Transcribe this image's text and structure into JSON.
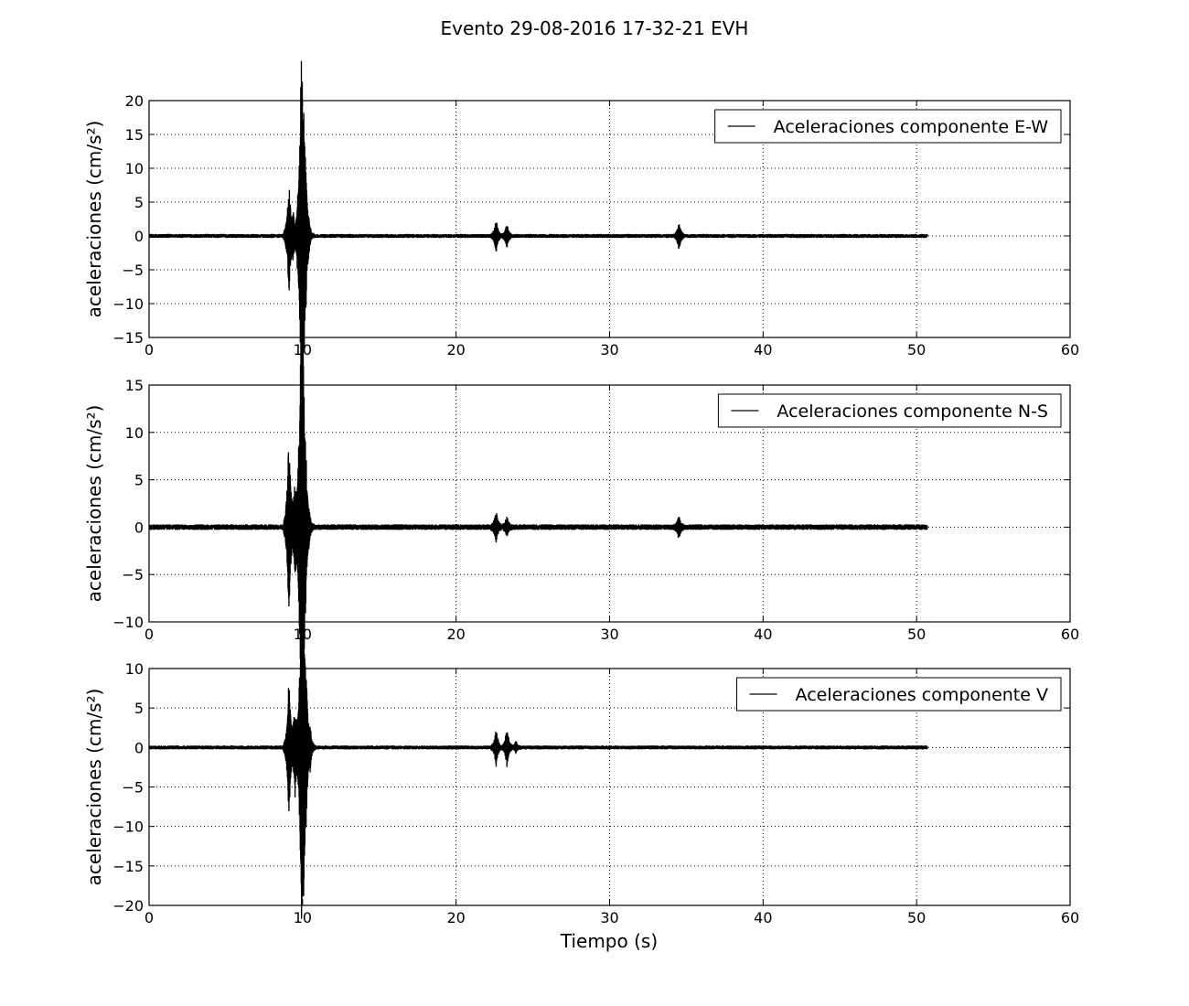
{
  "figure": {
    "title": "Evento 29-08-2016 17-32-21 EVH",
    "xlabel": "Tiempo (s)"
  },
  "chart_data": [
    {
      "type": "line",
      "xlabel": "",
      "ylabel": "aceleraciones (cm/s²)",
      "xlim": [
        0,
        60
      ],
      "ylim": [
        -15,
        20
      ],
      "xticks": [
        0,
        10,
        20,
        30,
        40,
        50,
        60
      ],
      "yticks": [
        -15,
        -10,
        -5,
        0,
        5,
        10,
        15,
        20
      ],
      "grid": true,
      "legend_position": "top-right",
      "series": [
        {
          "name": "Aceleraciones componente E-W",
          "color": "#000000",
          "duration": 50.7,
          "noise": 0.3,
          "peaks": [
            {
              "x": 9.1,
              "y": 5.3
            },
            {
              "x": 9.12,
              "y": -5.6
            },
            {
              "x": 9.4,
              "y": 3.5
            },
            {
              "x": 9.7,
              "y": 3.1
            },
            {
              "x": 9.9,
              "y": 15.5
            },
            {
              "x": 9.95,
              "y": -14.5
            },
            {
              "x": 10.0,
              "y": 6.0
            },
            {
              "x": 10.1,
              "y": -9.8
            },
            {
              "x": 10.2,
              "y": 6.0
            },
            {
              "x": 10.4,
              "y": 2.5
            },
            {
              "x": 22.6,
              "y": 1.5
            },
            {
              "x": 22.62,
              "y": -1.6
            },
            {
              "x": 23.3,
              "y": 1.2
            },
            {
              "x": 23.32,
              "y": -1.0
            },
            {
              "x": 34.5,
              "y": 1.2
            },
            {
              "x": 34.55,
              "y": -1.2
            }
          ]
        }
      ]
    },
    {
      "type": "line",
      "xlabel": "",
      "ylabel": "aceleraciones (cm/s²)",
      "xlim": [
        0,
        60
      ],
      "ylim": [
        -10,
        15
      ],
      "xticks": [
        0,
        10,
        20,
        30,
        40,
        50,
        60
      ],
      "yticks": [
        -10,
        -5,
        0,
        5,
        10,
        15
      ],
      "grid": true,
      "legend_position": "top-right",
      "series": [
        {
          "name": "Aceleraciones componente N-S",
          "color": "#000000",
          "duration": 50.7,
          "noise": 0.3,
          "peaks": [
            {
              "x": 9.1,
              "y": 6.7
            },
            {
              "x": 9.12,
              "y": -5.4
            },
            {
              "x": 9.5,
              "y": 2.8
            },
            {
              "x": 9.52,
              "y": -3.2
            },
            {
              "x": 9.8,
              "y": 3.5
            },
            {
              "x": 9.9,
              "y": 11.6
            },
            {
              "x": 9.92,
              "y": -8.5
            },
            {
              "x": 10.0,
              "y": 12.9
            },
            {
              "x": 10.05,
              "y": -7.8
            },
            {
              "x": 10.2,
              "y": 4.6
            },
            {
              "x": 10.4,
              "y": 2.0
            },
            {
              "x": 22.6,
              "y": 1.2
            },
            {
              "x": 22.62,
              "y": -0.8
            },
            {
              "x": 23.3,
              "y": 1.1
            },
            {
              "x": 34.5,
              "y": 0.8
            },
            {
              "x": 34.55,
              "y": -0.6
            }
          ]
        }
      ]
    },
    {
      "type": "line",
      "xlabel": "Tiempo (s)",
      "ylabel": "aceleraciones (cm/s²)",
      "xlim": [
        0,
        60
      ],
      "ylim": [
        -20,
        10
      ],
      "xticks": [
        0,
        10,
        20,
        30,
        40,
        50,
        60
      ],
      "yticks": [
        -20,
        -15,
        -10,
        -5,
        0,
        5,
        10
      ],
      "grid": true,
      "legend_position": "top-right",
      "series": [
        {
          "name": "Aceleraciones componente V",
          "color": "#000000",
          "duration": 50.7,
          "noise": 0.25,
          "peaks": [
            {
              "x": 9.1,
              "y": 5.3
            },
            {
              "x": 9.12,
              "y": -5.8
            },
            {
              "x": 9.5,
              "y": 3.5
            },
            {
              "x": 9.52,
              "y": -3.5
            },
            {
              "x": 9.9,
              "y": 9.0
            },
            {
              "x": 9.92,
              "y": -9.3
            },
            {
              "x": 10.0,
              "y": 7.0
            },
            {
              "x": 10.05,
              "y": -15.0
            },
            {
              "x": 10.2,
              "y": 4.0
            },
            {
              "x": 10.25,
              "y": -4.5
            },
            {
              "x": 10.5,
              "y": 2.5
            },
            {
              "x": 22.6,
              "y": 1.5
            },
            {
              "x": 22.62,
              "y": -1.4
            },
            {
              "x": 23.3,
              "y": 1.5
            },
            {
              "x": 23.32,
              "y": -1.6
            },
            {
              "x": 23.9,
              "y": 0.8
            }
          ]
        }
      ]
    }
  ]
}
